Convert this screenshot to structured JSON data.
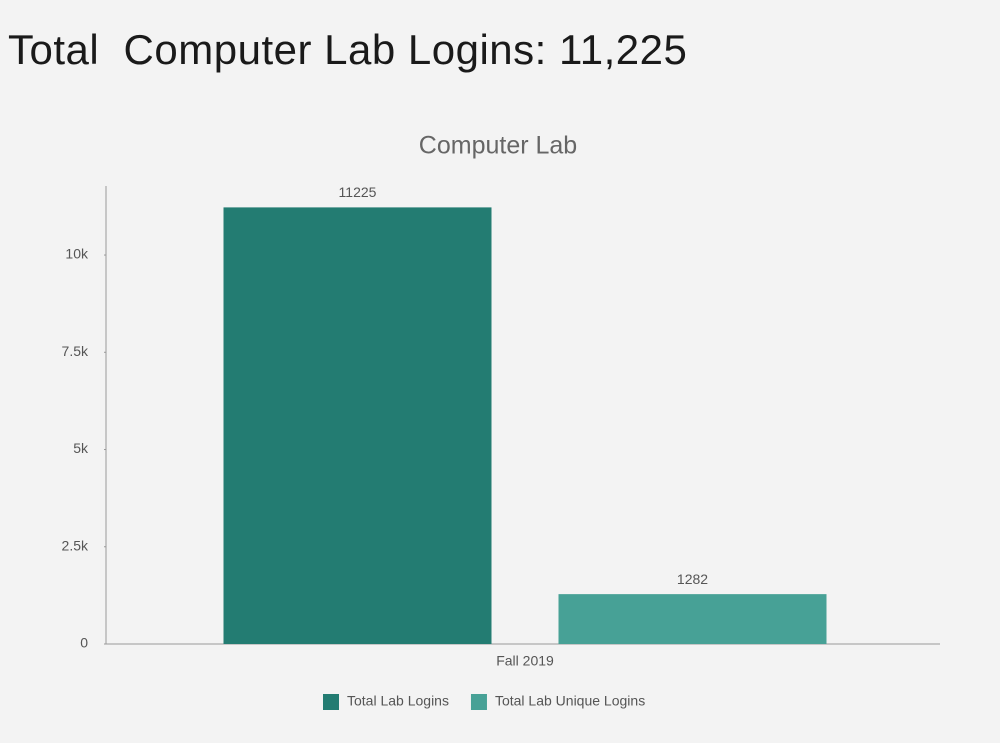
{
  "header": {
    "title": "Total  Computer Lab Logins: 11,225"
  },
  "chart_data": {
    "type": "bar",
    "title": "Computer Lab",
    "categories": [
      "Fall 2019"
    ],
    "series": [
      {
        "name": "Total Lab Logins",
        "color": "#237c72",
        "values": [
          11225
        ]
      },
      {
        "name": "Total Lab Unique Logins",
        "color": "#47a196",
        "values": [
          1282
        ]
      }
    ],
    "ylim": [
      0,
      11775
    ],
    "yticks": [
      0,
      {
        "value": 2500,
        "label": "2.5k"
      },
      {
        "value": 5000,
        "label": "5k"
      },
      {
        "value": 7500,
        "label": "7.5k"
      },
      {
        "value": 10000,
        "label": "10k"
      }
    ],
    "grid": false,
    "legend": "bottom"
  }
}
